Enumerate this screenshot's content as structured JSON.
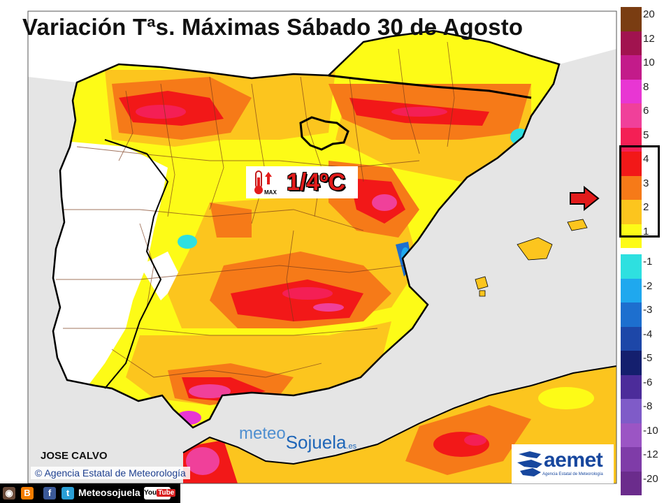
{
  "title": "Variación Tªs. Máximas Sábado 30 de Agosto",
  "highlight": {
    "value": "1/4ºC",
    "icon": "thermometer-max-icon",
    "icon_label": "MAX"
  },
  "legend": {
    "positive": [
      {
        "label": "20",
        "color": "#7a3d12"
      },
      {
        "label": "12",
        "color": "#a1134f"
      },
      {
        "label": "10",
        "color": "#c31b8a"
      },
      {
        "label": "8",
        "color": "#e836d3"
      },
      {
        "label": "6",
        "color": "#f0409a"
      },
      {
        "label": "5",
        "color": "#f41f55"
      },
      {
        "label": "4",
        "color": "#f21818"
      },
      {
        "label": "3",
        "color": "#f67a18"
      },
      {
        "label": "2",
        "color": "#fcc51e"
      },
      {
        "label": "1",
        "color": "#fdfb17"
      }
    ],
    "negative": [
      {
        "label": "-1",
        "color": "#2ee0e0"
      },
      {
        "label": "-2",
        "color": "#1fa8ee"
      },
      {
        "label": "-3",
        "color": "#1d6fcf"
      },
      {
        "label": "-4",
        "color": "#1d47a8"
      },
      {
        "label": "-5",
        "color": "#141f6e"
      },
      {
        "label": "-6",
        "color": "#4c2c9a"
      },
      {
        "label": "-8",
        "color": "#7f5bc8"
      },
      {
        "label": "-10",
        "color": "#9b55c4"
      },
      {
        "label": "-12",
        "color": "#7f3ca8"
      },
      {
        "label": "-20",
        "color": "#6b2c8c"
      }
    ],
    "selected_range": [
      "1",
      "4"
    ]
  },
  "author": "JOSE CALVO",
  "source": "Agencia Estatal de Meteorología",
  "source_symbol": "©",
  "watermark": {
    "part1": "meteo",
    "part2": "Sojuela",
    "part3": ".es"
  },
  "aemet": {
    "wordmark": "aemet",
    "subtitle": "Agencia Estatal de Meteorología"
  },
  "social": {
    "handle": "Meteosojuela",
    "icons": [
      "instagram-icon",
      "blogger-icon",
      "facebook-icon",
      "twitter-icon"
    ],
    "youtube_label": "You",
    "youtube_label2": "Tube"
  }
}
